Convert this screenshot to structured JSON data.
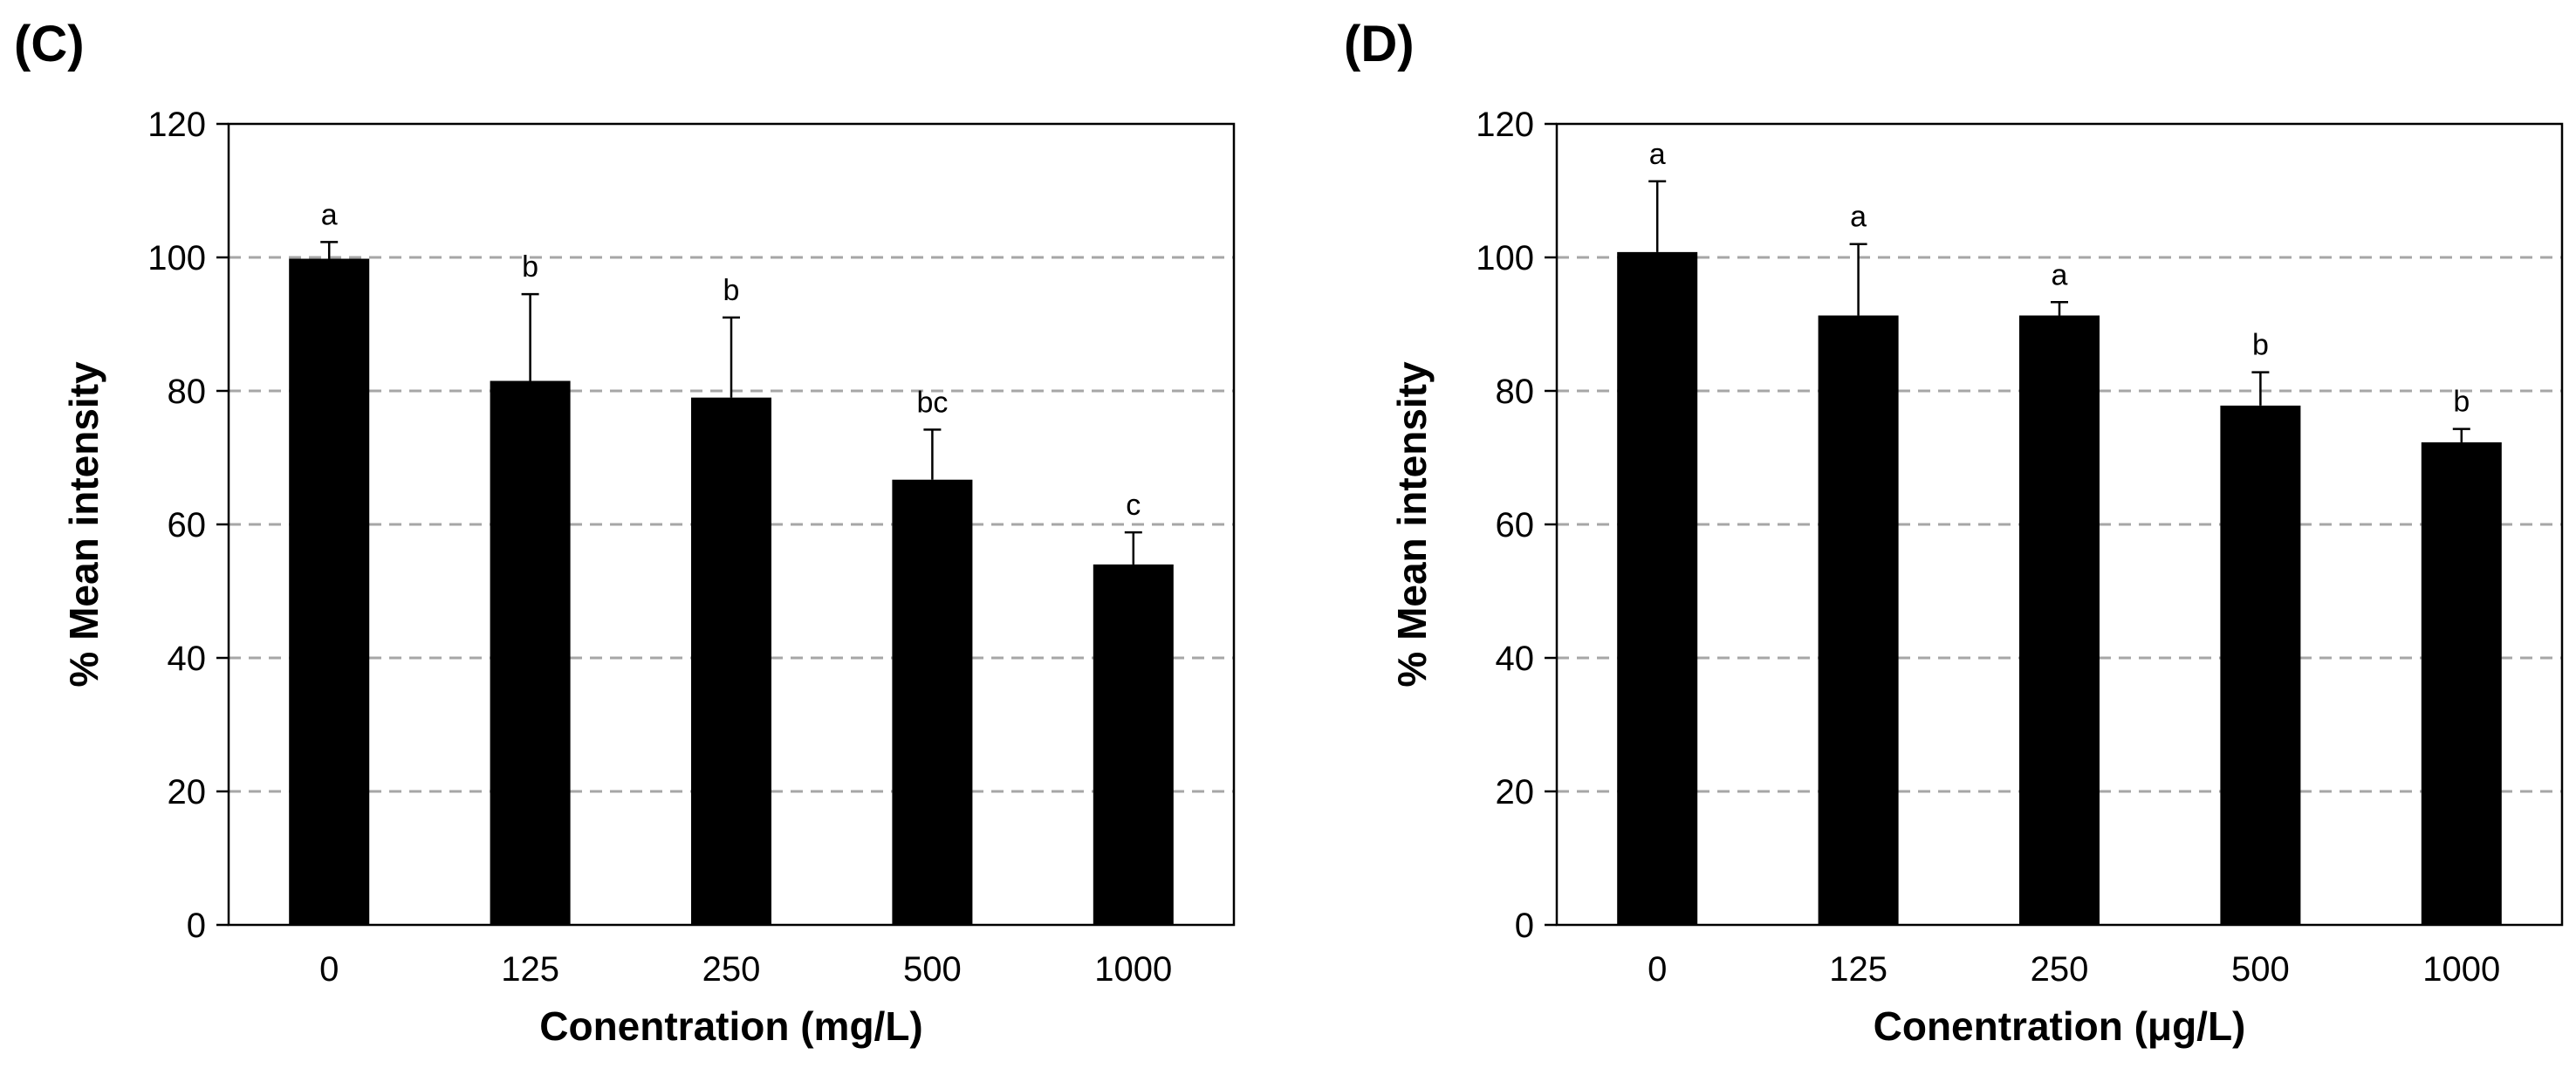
{
  "chart_data": [
    {
      "type": "bar",
      "panel_label": "(C)",
      "title": "",
      "xlabel": "Conentration (mg/L)",
      "ylabel": "% Mean intensity",
      "categories": [
        "0",
        "125",
        "250",
        "500",
        "1000"
      ],
      "values": [
        99.8,
        81.5,
        79.0,
        66.7,
        54.0
      ],
      "errors": [
        2.5,
        13.0,
        12.0,
        7.5,
        4.8
      ],
      "significance": [
        "a",
        "b",
        "b",
        "bc",
        "c"
      ],
      "ylim": [
        0,
        120
      ],
      "yticks": [
        "0",
        "20",
        "40",
        "60",
        "80",
        "100",
        "120"
      ],
      "grid": "horizontal dashed",
      "bar_color": "#000000",
      "grid_color": "#a6a6a6"
    },
    {
      "type": "bar",
      "panel_label": "(D)",
      "title": "",
      "xlabel": "Conentration (μg/L)",
      "ylabel": "% Mean intensity",
      "categories": [
        "0",
        "125",
        "250",
        "500",
        "1000"
      ],
      "values": [
        100.8,
        91.3,
        91.3,
        77.8,
        72.3
      ],
      "errors": [
        10.6,
        10.7,
        2.0,
        5.0,
        2.0
      ],
      "significance": [
        "a",
        "a",
        "a",
        "b",
        "b"
      ],
      "ylim": [
        0,
        120
      ],
      "yticks": [
        "0",
        "20",
        "40",
        "60",
        "80",
        "100",
        "120"
      ],
      "grid": "horizontal dashed",
      "bar_color": "#000000",
      "grid_color": "#a6a6a6"
    }
  ]
}
